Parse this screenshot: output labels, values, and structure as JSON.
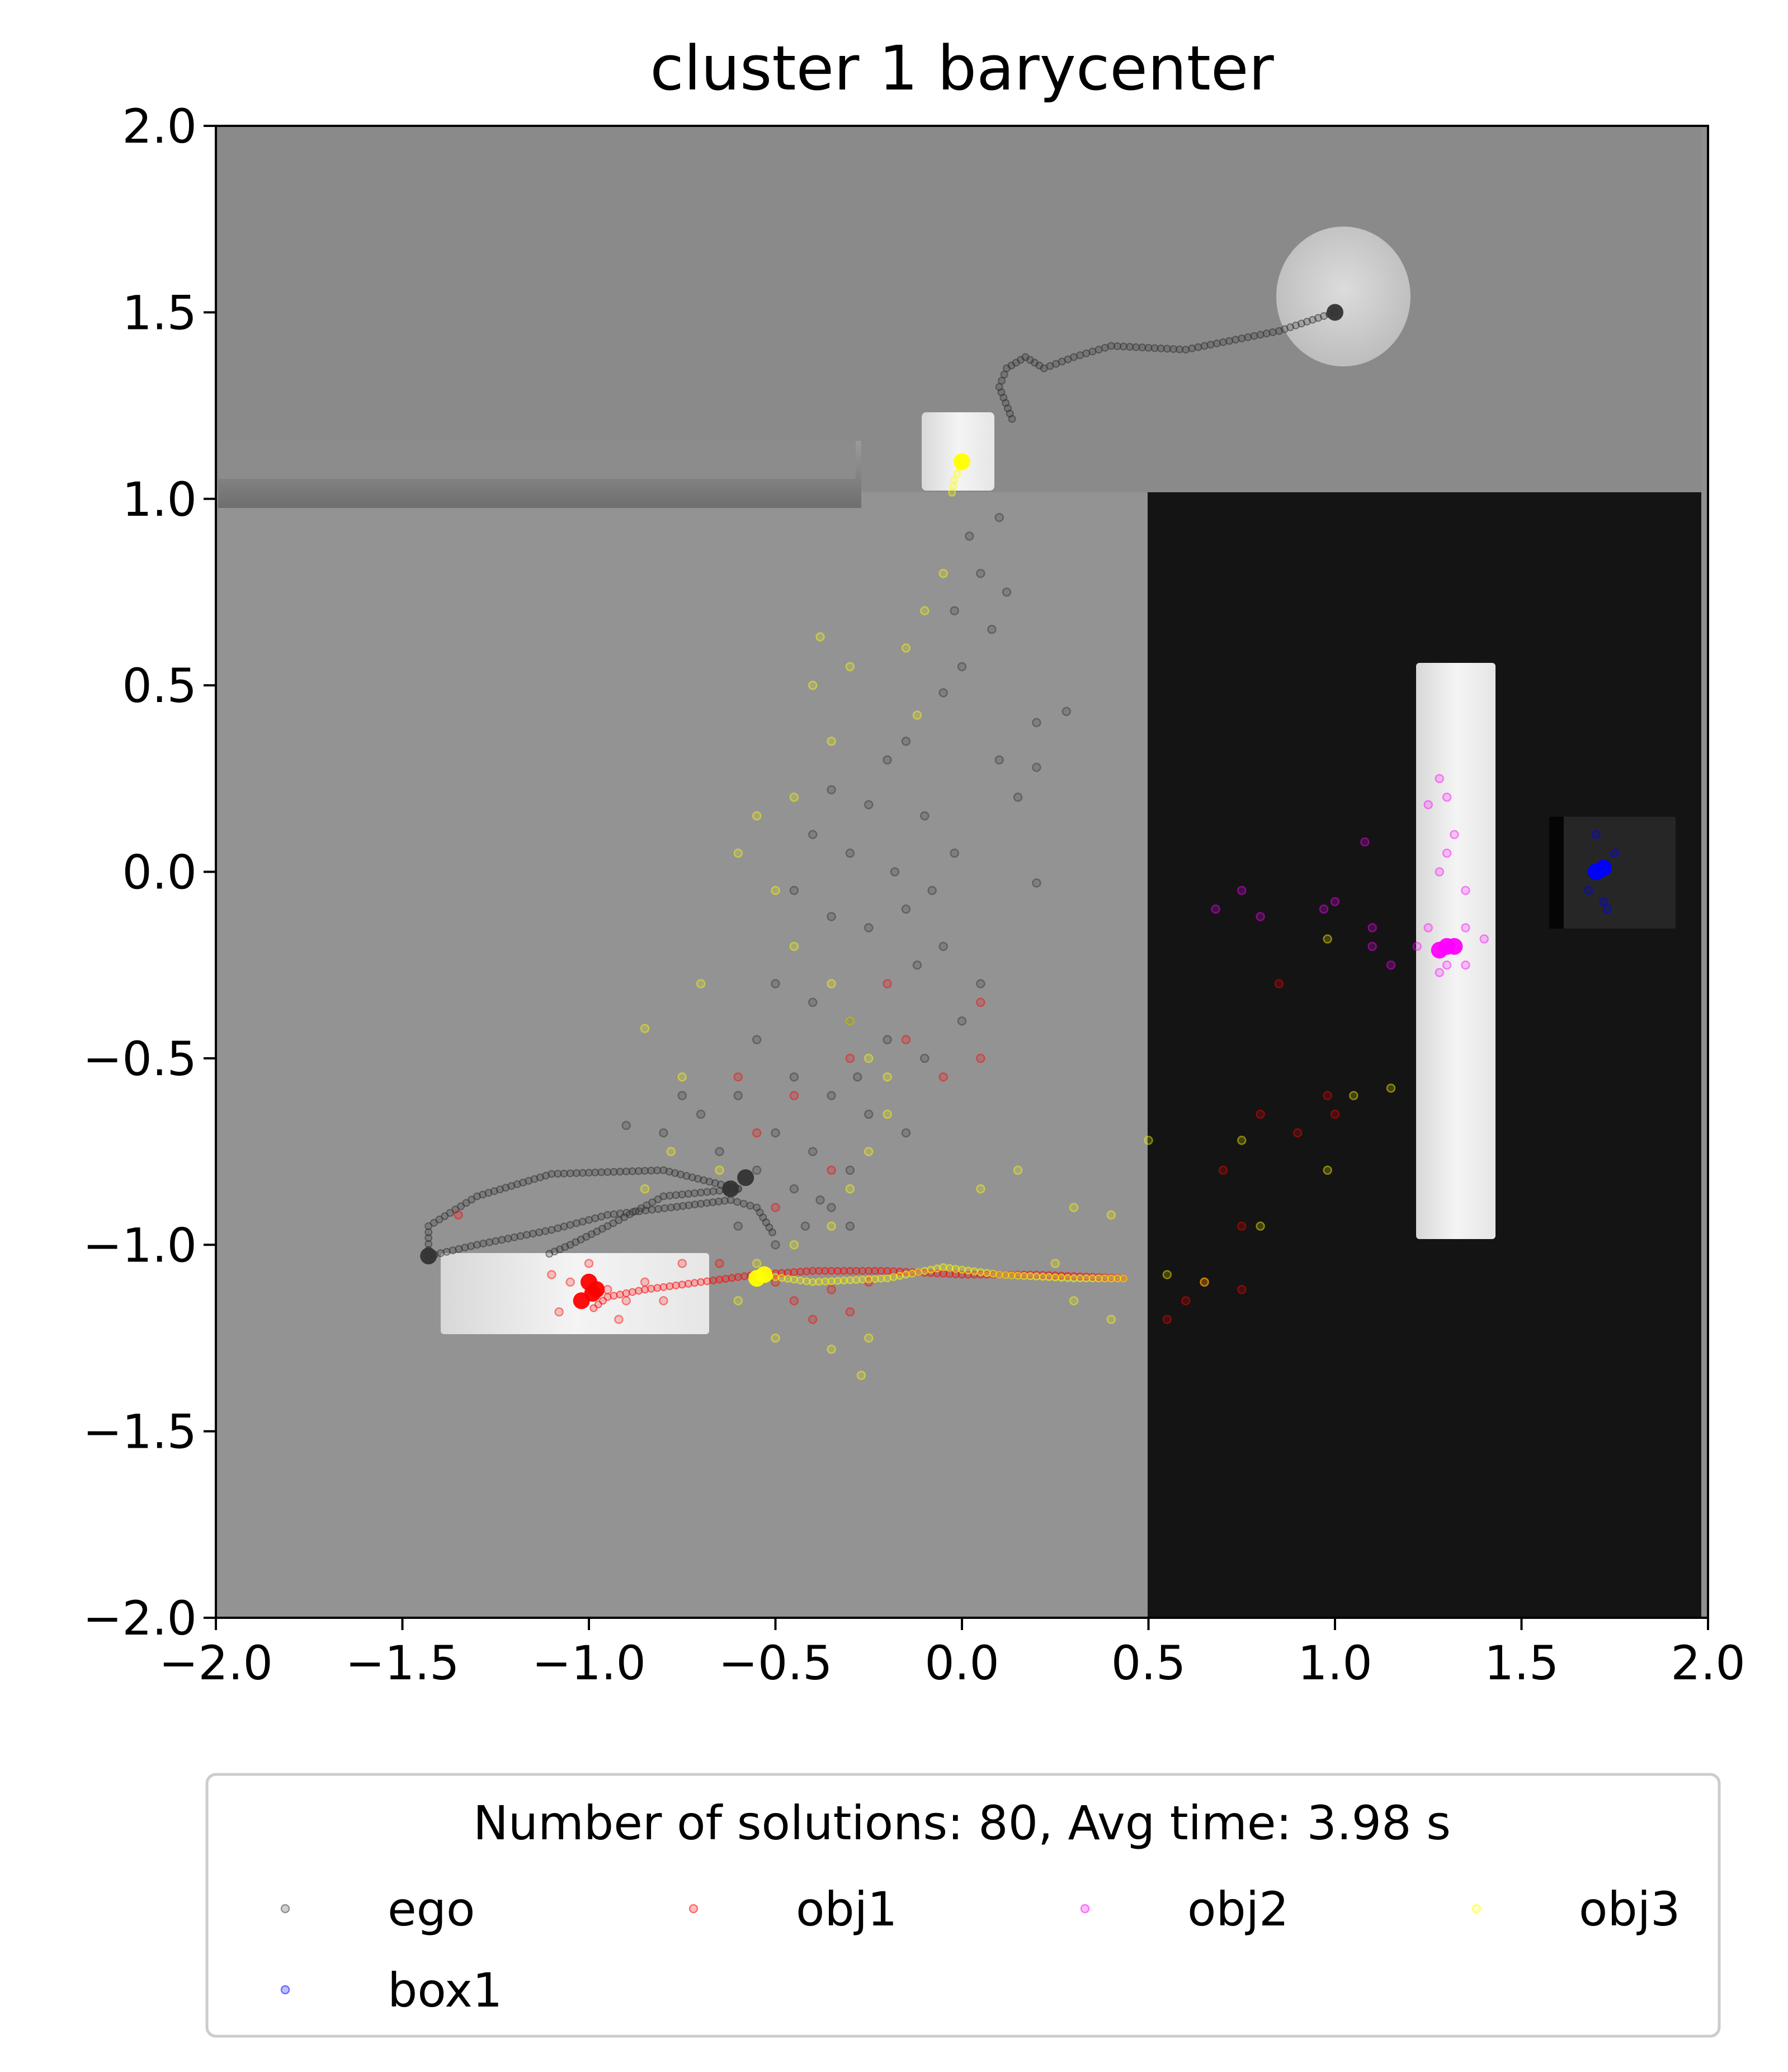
{
  "chart_data": {
    "type": "scatter",
    "title": "cluster 1 barycenter",
    "xlabel": "",
    "ylabel": "",
    "xlim": [
      -2.0,
      2.0
    ],
    "ylim": [
      -2.0,
      2.0
    ],
    "xticks": [
      "−2.0",
      "−1.5",
      "−1.0",
      "−0.5",
      "0.0",
      "0.5",
      "1.0",
      "1.5",
      "2.0"
    ],
    "yticks": [
      "2.0",
      "1.5",
      "1.0",
      "0.5",
      "0.0",
      "−0.5",
      "−1.0",
      "−1.5",
      "−2.0"
    ],
    "xtick_values": [
      -2.0,
      -1.5,
      -1.0,
      -0.5,
      0.0,
      0.5,
      1.0,
      1.5,
      2.0
    ],
    "ytick_values": [
      2.0,
      1.5,
      1.0,
      0.5,
      0.0,
      -0.5,
      -1.0,
      -1.5,
      -2.0
    ],
    "grid": false,
    "legend": {
      "title": "Number of solutions: 80, Avg time: 3.98 s",
      "placement": "below",
      "columns": 4,
      "entries": [
        {
          "name": "ego",
          "color": "#444444"
        },
        {
          "name": "obj1",
          "color": "#ff0000"
        },
        {
          "name": "obj2",
          "color": "#ff00ff"
        },
        {
          "name": "obj3",
          "color": "#ffff00"
        },
        {
          "name": "box1",
          "color": "#0000ff"
        }
      ]
    },
    "series": [
      {
        "name": "ego",
        "color": "#333333",
        "path": [
          [
            1.0,
            1.5
          ],
          [
            0.85,
            1.45
          ],
          [
            0.6,
            1.4
          ],
          [
            0.4,
            1.41
          ],
          [
            0.3,
            1.38
          ],
          [
            0.22,
            1.35
          ],
          [
            0.17,
            1.38
          ],
          [
            0.12,
            1.35
          ],
          [
            0.1,
            1.3
          ],
          [
            0.14,
            1.2
          ]
        ],
        "path2": [
          [
            -0.6,
            -0.85
          ],
          [
            -0.8,
            -0.8
          ],
          [
            -1.1,
            -0.81
          ],
          [
            -1.3,
            -0.87
          ],
          [
            -1.43,
            -0.95
          ],
          [
            -1.43,
            -1.03
          ],
          [
            -1.3,
            -1.0
          ],
          [
            -1.1,
            -0.96
          ],
          [
            -0.95,
            -0.92
          ],
          [
            -0.78,
            -0.9
          ],
          [
            -0.62,
            -0.88
          ],
          [
            -0.55,
            -0.9
          ],
          [
            -0.5,
            -0.98
          ]
        ],
        "path3": [
          [
            -0.6,
            -0.85
          ],
          [
            -0.8,
            -0.87
          ],
          [
            -0.95,
            -0.95
          ],
          [
            -1.05,
            -1.0
          ],
          [
            -1.12,
            -1.03
          ]
        ],
        "markers": [
          [
            1.0,
            1.5
          ],
          [
            -0.62,
            -0.85
          ],
          [
            -0.58,
            -0.82
          ],
          [
            -1.43,
            -1.03
          ]
        ],
        "scatter": [
          [
            0.05,
            0.8
          ],
          [
            0.02,
            0.9
          ],
          [
            0.1,
            0.95
          ],
          [
            -0.02,
            0.7
          ],
          [
            0.08,
            0.65
          ],
          [
            0.12,
            0.75
          ],
          [
            0.0,
            0.55
          ],
          [
            -0.05,
            0.48
          ],
          [
            0.2,
            0.4
          ],
          [
            0.28,
            0.43
          ],
          [
            -0.15,
            0.35
          ],
          [
            -0.2,
            0.3
          ],
          [
            -0.35,
            0.22
          ],
          [
            -0.25,
            0.18
          ],
          [
            -0.1,
            0.15
          ],
          [
            -0.4,
            0.1
          ],
          [
            -0.3,
            0.05
          ],
          [
            -0.18,
            0.0
          ],
          [
            -0.08,
            -0.05
          ],
          [
            0.2,
            -0.03
          ],
          [
            -0.45,
            -0.05
          ],
          [
            -0.35,
            -0.12
          ],
          [
            -0.25,
            -0.15
          ],
          [
            -0.15,
            -0.1
          ],
          [
            -0.05,
            -0.2
          ],
          [
            0.05,
            -0.3
          ],
          [
            -0.5,
            -0.3
          ],
          [
            -0.4,
            -0.35
          ],
          [
            -0.3,
            -0.4
          ],
          [
            -0.2,
            -0.45
          ],
          [
            -0.1,
            -0.5
          ],
          [
            -0.55,
            -0.45
          ],
          [
            -0.45,
            -0.55
          ],
          [
            -0.35,
            -0.6
          ],
          [
            -0.25,
            -0.65
          ],
          [
            -0.15,
            -0.7
          ],
          [
            -0.6,
            -0.6
          ],
          [
            -0.7,
            -0.65
          ],
          [
            -0.5,
            -0.7
          ],
          [
            -0.4,
            -0.75
          ],
          [
            -0.3,
            -0.8
          ],
          [
            -0.8,
            -0.7
          ],
          [
            -0.9,
            -0.68
          ],
          [
            -0.65,
            -0.75
          ],
          [
            -0.55,
            -0.8
          ],
          [
            -0.45,
            -0.85
          ],
          [
            -0.35,
            -0.9
          ],
          [
            -0.5,
            -1.0
          ],
          [
            -0.6,
            -0.95
          ],
          [
            -0.75,
            -0.6
          ],
          [
            0.1,
            0.3
          ],
          [
            0.15,
            0.2
          ],
          [
            -0.02,
            0.05
          ],
          [
            -0.12,
            -0.25
          ],
          [
            0.0,
            -0.4
          ],
          [
            -0.28,
            -0.55
          ],
          [
            -0.42,
            -0.95
          ],
          [
            -0.3,
            -0.95
          ],
          [
            -0.38,
            -0.88
          ],
          [
            0.2,
            0.28
          ]
        ]
      },
      {
        "name": "obj1",
        "color": "#ff0000",
        "path": [
          [
            -0.55,
            -1.08
          ],
          [
            -0.4,
            -1.07
          ],
          [
            -0.2,
            -1.07
          ],
          [
            0.0,
            -1.08
          ],
          [
            0.2,
            -1.08
          ],
          [
            0.45,
            -1.09
          ]
        ],
        "path2": [
          [
            -0.55,
            -1.08
          ],
          [
            -0.7,
            -1.1
          ],
          [
            -0.85,
            -1.12
          ],
          [
            -0.95,
            -1.14
          ],
          [
            -1.0,
            -1.18
          ]
        ],
        "markers": [
          [
            -1.0,
            -1.1
          ],
          [
            -0.99,
            -1.13
          ],
          [
            -1.02,
            -1.15
          ],
          [
            -0.98,
            -1.12
          ]
        ],
        "scatter": [
          [
            -1.0,
            -1.05
          ],
          [
            -1.05,
            -1.1
          ],
          [
            -0.95,
            -1.12
          ],
          [
            -0.9,
            -1.15
          ],
          [
            -0.85,
            -1.1
          ],
          [
            -1.08,
            -1.18
          ],
          [
            -0.92,
            -1.2
          ],
          [
            -0.8,
            -1.15
          ],
          [
            -1.1,
            -1.08
          ],
          [
            -0.75,
            -1.05
          ],
          [
            -0.65,
            -1.05
          ],
          [
            -0.5,
            -1.1
          ],
          [
            -0.45,
            -1.15
          ],
          [
            -0.4,
            -1.2
          ],
          [
            -0.3,
            -1.18
          ],
          [
            -0.35,
            -1.12
          ],
          [
            -0.25,
            -1.1
          ],
          [
            -0.6,
            -0.55
          ],
          [
            -0.55,
            -0.7
          ],
          [
            -0.45,
            -0.6
          ],
          [
            -0.3,
            -0.5
          ],
          [
            -0.15,
            -0.45
          ],
          [
            -0.05,
            -0.55
          ],
          [
            0.05,
            -0.5
          ],
          [
            -0.2,
            -0.3
          ],
          [
            0.05,
            -0.35
          ],
          [
            -0.35,
            -0.8
          ],
          [
            -0.5,
            -0.9
          ],
          [
            0.8,
            -0.65
          ],
          [
            0.9,
            -0.7
          ],
          [
            1.0,
            -0.65
          ],
          [
            0.7,
            -0.8
          ],
          [
            0.75,
            -0.95
          ],
          [
            0.65,
            -1.1
          ],
          [
            0.6,
            -1.15
          ],
          [
            0.55,
            -1.2
          ],
          [
            0.75,
            -1.12
          ],
          [
            0.85,
            -0.3
          ],
          [
            -1.35,
            -0.92
          ],
          [
            0.98,
            -0.6
          ]
        ]
      },
      {
        "name": "obj2",
        "color": "#ff00ff",
        "markers": [
          [
            1.3,
            -0.2
          ],
          [
            1.28,
            -0.21
          ],
          [
            1.32,
            -0.2
          ]
        ],
        "scatter": [
          [
            1.25,
            -0.15
          ],
          [
            1.35,
            -0.15
          ],
          [
            1.3,
            -0.25
          ],
          [
            1.28,
            -0.27
          ],
          [
            1.35,
            -0.25
          ],
          [
            1.4,
            -0.18
          ],
          [
            1.22,
            -0.2
          ],
          [
            1.3,
            0.05
          ],
          [
            1.32,
            0.1
          ],
          [
            1.28,
            0.0
          ],
          [
            1.35,
            -0.05
          ],
          [
            1.3,
            0.2
          ],
          [
            1.25,
            0.18
          ],
          [
            1.28,
            0.25
          ],
          [
            1.1,
            -0.2
          ],
          [
            1.1,
            -0.15
          ],
          [
            1.15,
            -0.25
          ],
          [
            0.97,
            -0.1
          ],
          [
            1.0,
            -0.08
          ],
          [
            0.8,
            -0.12
          ],
          [
            0.75,
            -0.05
          ],
          [
            0.68,
            -0.1
          ],
          [
            1.08,
            0.08
          ]
        ]
      },
      {
        "name": "obj3",
        "color": "#ffff00",
        "path": [
          [
            -0.55,
            -1.08
          ],
          [
            -0.4,
            -1.1
          ],
          [
            -0.2,
            -1.09
          ],
          [
            -0.05,
            -1.06
          ],
          [
            0.1,
            -1.08
          ],
          [
            0.3,
            -1.09
          ],
          [
            0.45,
            -1.09
          ]
        ],
        "path2": [
          [
            0.0,
            1.1
          ],
          [
            -0.02,
            1.05
          ],
          [
            -0.03,
            1.0
          ]
        ],
        "markers": [
          [
            -0.53,
            -1.08
          ],
          [
            -0.55,
            -1.09
          ],
          [
            0.0,
            1.1
          ]
        ],
        "scatter": [
          [
            -0.05,
            0.8
          ],
          [
            -0.1,
            0.7
          ],
          [
            -0.15,
            0.6
          ],
          [
            -0.3,
            0.55
          ],
          [
            -0.4,
            0.5
          ],
          [
            -0.35,
            0.35
          ],
          [
            -0.45,
            0.2
          ],
          [
            -0.55,
            0.15
          ],
          [
            -0.6,
            0.05
          ],
          [
            -0.5,
            -0.05
          ],
          [
            -0.45,
            -0.2
          ],
          [
            -0.35,
            -0.3
          ],
          [
            -0.3,
            -0.4
          ],
          [
            -0.25,
            -0.5
          ],
          [
            -0.2,
            -0.55
          ],
          [
            -0.2,
            -0.65
          ],
          [
            -0.25,
            -0.75
          ],
          [
            -0.3,
            -0.85
          ],
          [
            -0.35,
            -0.95
          ],
          [
            -0.45,
            -1.0
          ],
          [
            -0.55,
            -1.05
          ],
          [
            -0.6,
            -1.15
          ],
          [
            -0.5,
            -1.25
          ],
          [
            -0.35,
            -1.28
          ],
          [
            -0.25,
            -1.25
          ],
          [
            -0.27,
            -1.35
          ],
          [
            -0.75,
            -0.55
          ],
          [
            -0.85,
            -0.42
          ],
          [
            -0.78,
            -0.75
          ],
          [
            -0.65,
            -0.8
          ],
          [
            0.05,
            -0.85
          ],
          [
            0.15,
            -0.8
          ],
          [
            0.3,
            -0.9
          ],
          [
            0.4,
            -0.92
          ],
          [
            0.5,
            -0.72
          ],
          [
            0.55,
            -1.08
          ],
          [
            0.65,
            -1.1
          ],
          [
            0.8,
            -0.95
          ],
          [
            0.75,
            -0.72
          ],
          [
            0.98,
            -0.18
          ],
          [
            1.05,
            -0.6
          ],
          [
            1.15,
            -0.58
          ],
          [
            0.98,
            -0.8
          ],
          [
            0.3,
            -1.15
          ],
          [
            0.4,
            -1.2
          ],
          [
            -0.7,
            -0.3
          ],
          [
            -0.85,
            -0.85
          ],
          [
            0.25,
            -1.05
          ],
          [
            -0.38,
            0.63
          ],
          [
            -0.12,
            0.42
          ]
        ]
      },
      {
        "name": "box1",
        "color": "#0000ff",
        "markers": [
          [
            1.7,
            0.0
          ],
          [
            1.72,
            0.01
          ]
        ],
        "scatter": [
          [
            1.68,
            -0.05
          ],
          [
            1.72,
            -0.08
          ],
          [
            1.75,
            0.05
          ],
          [
            1.7,
            0.1
          ],
          [
            1.73,
            -0.1
          ]
        ]
      }
    ]
  }
}
